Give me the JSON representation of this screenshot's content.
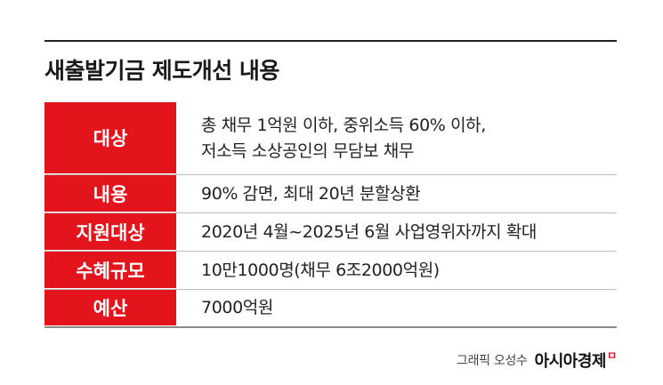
{
  "title": "새출발기금 제도개선 내용",
  "rows": [
    {
      "label": "대상",
      "lines": [
        "총 채무 1억원 이하, 중위소득 60% 이하,",
        "저소득 소상공인의 무담보 채무"
      ]
    },
    {
      "label": "내용",
      "lines": [
        "90% 감면, 최대 20년 분할상환"
      ]
    },
    {
      "label": "지원대상",
      "lines": [
        "2020년 4월~2025년 6월 사업영위자까지 확대"
      ]
    },
    {
      "label": "수혜규모",
      "lines": [
        "10만1000명(채무 6조2000억원)"
      ]
    },
    {
      "label": "예산",
      "lines": [
        "7000억원"
      ]
    }
  ],
  "credit": "그래픽 오성수",
  "brand": "아시아경제",
  "brand_mark": "ㅁ",
  "colors": {
    "accent": "#e3141b",
    "label_text": "#ffffff",
    "body_text": "#222222"
  }
}
